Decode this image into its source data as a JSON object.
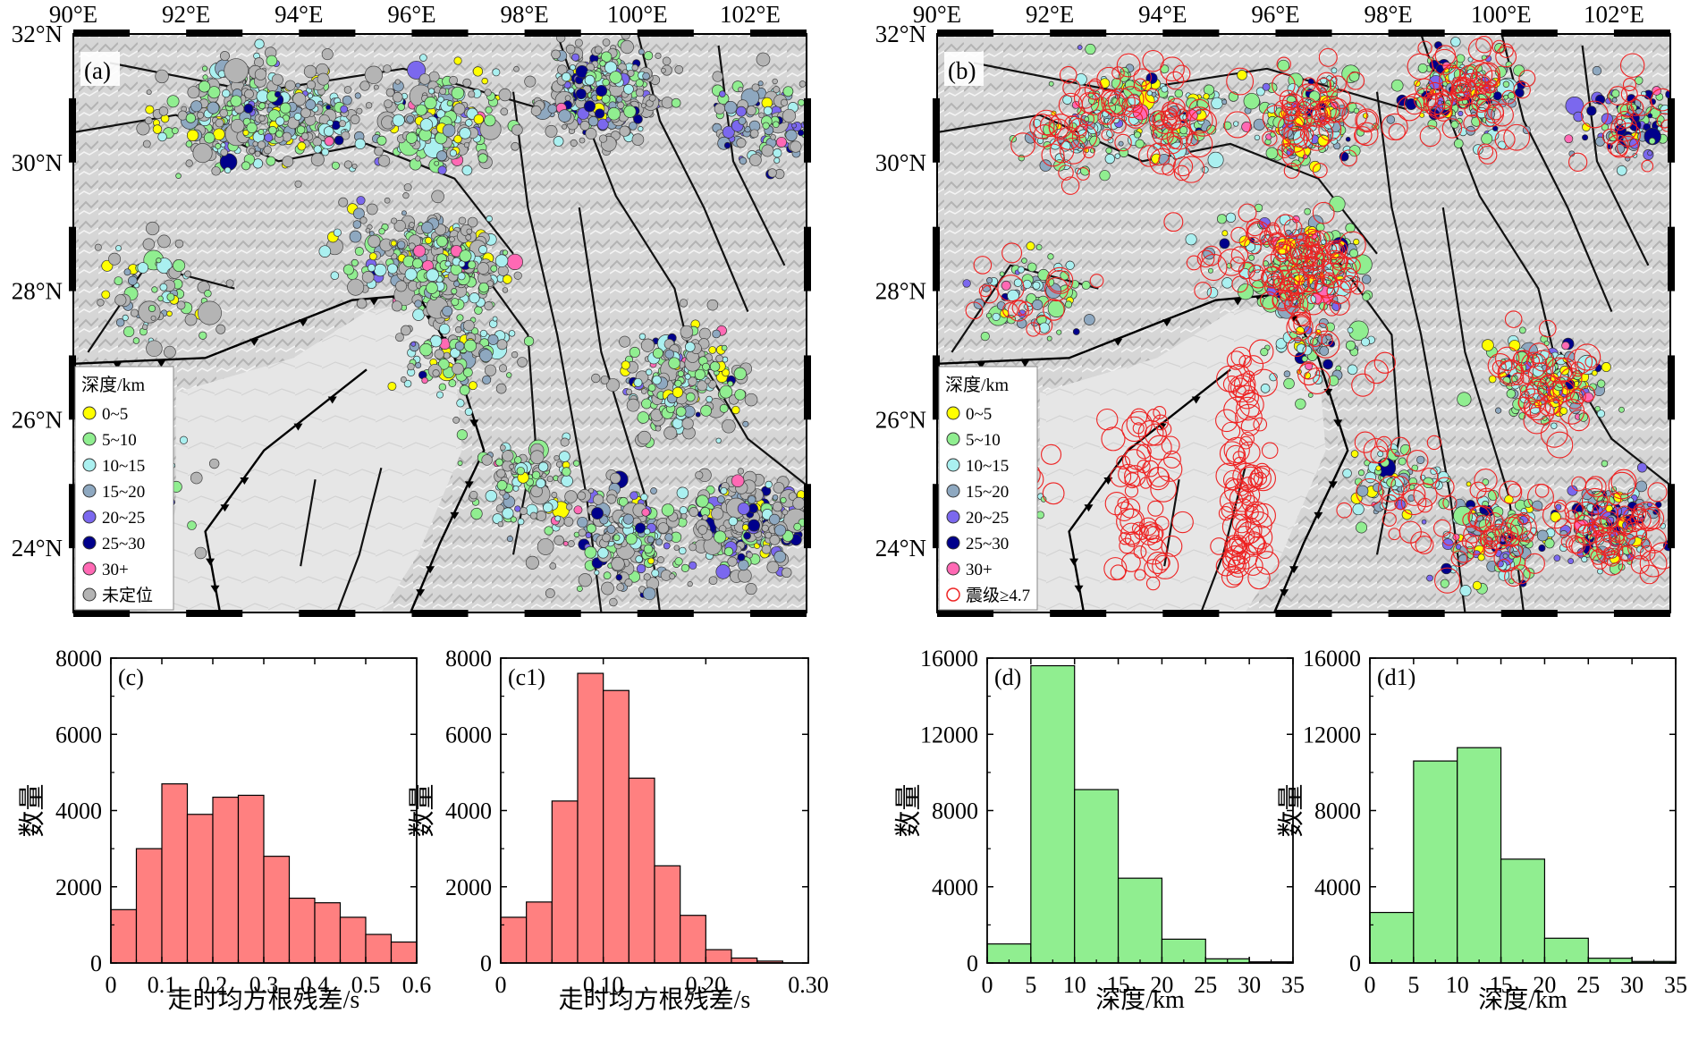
{
  "chart_data": [
    {
      "id": "map_a",
      "type": "scatter",
      "panel_label": "(a)",
      "x_ticks": [
        "90°E",
        "92°E",
        "94°E",
        "96°E",
        "98°E",
        "100°E",
        "102°E"
      ],
      "y_ticks": [
        "32°N",
        "30°N",
        "28°N",
        "26°N",
        "24°N"
      ],
      "xlim": [
        90,
        103
      ],
      "ylim": [
        23,
        32
      ],
      "legend_title": "深度/km",
      "legend": [
        "0~5",
        "5~10",
        "10~15",
        "15~20",
        "20~25",
        "25~30",
        "30+",
        "未定位"
      ],
      "legend_placement": "lower-left",
      "colors": {
        "0~5": "#ffff00",
        "5~10": "#90ee90",
        "10~15": "#aaf0f0",
        "15~20": "#8ea8c0",
        "20~25": "#7b68ee",
        "25~30": "#00008b",
        "30+": "#ff69b4",
        "未定位": "#b4b4b4"
      }
    },
    {
      "id": "map_b",
      "type": "scatter",
      "panel_label": "(b)",
      "x_ticks": [
        "90°E",
        "92°E",
        "94°E",
        "96°E",
        "98°E",
        "100°E",
        "102°E"
      ],
      "y_ticks": [
        "32°N",
        "30°N",
        "28°N",
        "26°N",
        "24°N"
      ],
      "xlim": [
        90,
        103
      ],
      "ylim": [
        23,
        32
      ],
      "legend_title": "深度/km",
      "legend": [
        "0~5",
        "5~10",
        "10~15",
        "15~20",
        "20~25",
        "25~30",
        "30+",
        "震级≥4.7"
      ],
      "legend_placement": "lower-left",
      "colors": {
        "0~5": "#ffff00",
        "5~10": "#90ee90",
        "10~15": "#aaf0f0",
        "15~20": "#8ea8c0",
        "20~25": "#7b68ee",
        "25~30": "#00008b",
        "30+": "#ff69b4",
        "震级≥4.7": "#ee2222"
      }
    },
    {
      "id": "hist_c",
      "type": "bar",
      "panel_label": "(c)",
      "xlabel": "走时均方根残差/s",
      "ylabel": "数量",
      "bin_start": 0,
      "bin_width": 0.05,
      "values": [
        1400,
        3000,
        4700,
        3900,
        4350,
        4400,
        2800,
        1700,
        1580,
        1200,
        750,
        550
      ],
      "xlim": [
        0,
        0.6
      ],
      "ylim": [
        0,
        8000
      ],
      "x_ticks": [
        "0",
        "0.1",
        "0.2",
        "0.3",
        "0.4",
        "0.5",
        "0.6"
      ],
      "y_ticks": [
        "0",
        "2000",
        "4000",
        "6000",
        "8000"
      ],
      "color": "#ff8080"
    },
    {
      "id": "hist_c1",
      "type": "bar",
      "panel_label": "(c1)",
      "xlabel": "走时均方根残差/s",
      "ylabel": "数量",
      "bin_start": 0,
      "bin_width": 0.025,
      "values": [
        1200,
        1600,
        4250,
        7600,
        7150,
        4850,
        2550,
        1250,
        350,
        130,
        50
      ],
      "xlim": [
        0,
        0.3
      ],
      "ylim": [
        0,
        8000
      ],
      "x_ticks": [
        "0",
        "0.10",
        "0.20",
        "0.30"
      ],
      "y_ticks": [
        "0",
        "2000",
        "4000",
        "6000",
        "8000"
      ],
      "color": "#ff8080"
    },
    {
      "id": "hist_d",
      "type": "bar",
      "panel_label": "(d)",
      "xlabel": "深度/km",
      "ylabel": "数量",
      "bin_start": 0,
      "bin_width": 5,
      "values": [
        1000,
        15600,
        9100,
        4450,
        1250,
        220,
        60
      ],
      "xlim": [
        0,
        35
      ],
      "ylim": [
        0,
        16000
      ],
      "x_ticks": [
        "0",
        "5",
        "10",
        "15",
        "20",
        "25",
        "30",
        "35"
      ],
      "y_ticks": [
        "0",
        "4000",
        "8000",
        "12000",
        "16000"
      ],
      "color": "#90ee90"
    },
    {
      "id": "hist_d1",
      "type": "bar",
      "panel_label": "(d1)",
      "xlabel": "深度/km",
      "ylabel": "数量",
      "bin_start": 0,
      "bin_width": 5,
      "values": [
        2650,
        10600,
        11300,
        5450,
        1300,
        250,
        80
      ],
      "xlim": [
        0,
        35
      ],
      "ylim": [
        0,
        16000
      ],
      "x_ticks": [
        "0",
        "5",
        "10",
        "15",
        "20",
        "25",
        "30",
        "35"
      ],
      "y_ticks": [
        "0",
        "4000",
        "8000",
        "12000",
        "16000"
      ],
      "color": "#90ee90"
    }
  ]
}
